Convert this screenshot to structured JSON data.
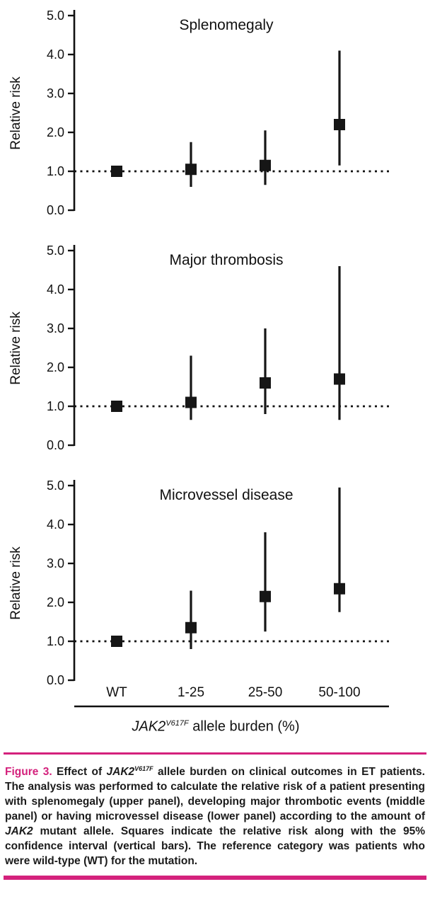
{
  "colors": {
    "accent_magenta": "#d4217c",
    "marker_black": "#161616"
  },
  "chart_data": [
    {
      "type": "scatter",
      "title": "Splenomegaly",
      "ylabel": "Relative risk",
      "ylim": [
        0.0,
        5.0
      ],
      "yticks": [
        0,
        1,
        2,
        3,
        4,
        5
      ],
      "categories": [
        "WT",
        "1-25",
        "25-50",
        "50-100"
      ],
      "series": [
        {
          "name": "relative_risk",
          "values": [
            1.0,
            1.05,
            1.15,
            2.2
          ]
        },
        {
          "name": "ci_low",
          "values": [
            null,
            0.6,
            0.65,
            1.15
          ]
        },
        {
          "name": "ci_high",
          "values": [
            null,
            1.75,
            2.05,
            4.1
          ]
        }
      ],
      "reference_line": 1.0,
      "marker": "black-square",
      "show_x_labels": false,
      "legend": "none",
      "grid": "off"
    },
    {
      "type": "scatter",
      "title": "Major thrombosis",
      "ylabel": "Relative risk",
      "ylim": [
        0.0,
        5.0
      ],
      "yticks": [
        0,
        1,
        2,
        3,
        4,
        5
      ],
      "categories": [
        "WT",
        "1-25",
        "25-50",
        "50-100"
      ],
      "series": [
        {
          "name": "relative_risk",
          "values": [
            1.0,
            1.1,
            1.6,
            1.7
          ]
        },
        {
          "name": "ci_low",
          "values": [
            null,
            0.65,
            0.8,
            0.65
          ]
        },
        {
          "name": "ci_high",
          "values": [
            null,
            2.3,
            3.0,
            4.6
          ]
        }
      ],
      "reference_line": 1.0,
      "marker": "black-square",
      "show_x_labels": false,
      "legend": "none",
      "grid": "off"
    },
    {
      "type": "scatter",
      "title": "Microvessel disease",
      "ylabel": "Relative risk",
      "ylim": [
        0.0,
        5.0
      ],
      "yticks": [
        0,
        1,
        2,
        3,
        4,
        5
      ],
      "categories": [
        "WT",
        "1-25",
        "25-50",
        "50-100"
      ],
      "series": [
        {
          "name": "relative_risk",
          "values": [
            1.0,
            1.35,
            2.15,
            2.35
          ]
        },
        {
          "name": "ci_low",
          "values": [
            null,
            0.8,
            1.25,
            1.75
          ]
        },
        {
          "name": "ci_high",
          "values": [
            null,
            2.3,
            3.8,
            4.95
          ]
        }
      ],
      "reference_line": 1.0,
      "marker": "black-square",
      "show_x_labels": true,
      "legend": "none",
      "grid": "off"
    }
  ],
  "xaxis": {
    "gene": "JAK2",
    "sup": "V617F",
    "rest": " allele burden (%)",
    "categories": [
      "WT",
      "1-25",
      "25-50",
      "50-100"
    ]
  },
  "caption": {
    "figure_label": "Figure 3.",
    "part1": " Effect of ",
    "gene1": "JAK2",
    "sup1": "V617F",
    "part2": " allele burden on clinical outcomes in ET patients. The analysis was performed to calculate the relative risk of a patient presenting with splenomegaly (upper panel), developing major thrombotic events (middle panel) or having microvessel disease (lower panel) according to the amount of ",
    "gene2": "JAK2",
    "part3": " mutant allele. Squares indicate the relative risk along with the 95% confidence interval (vertical bars). The reference category was patients who were wild-type (WT) for the mutation."
  }
}
